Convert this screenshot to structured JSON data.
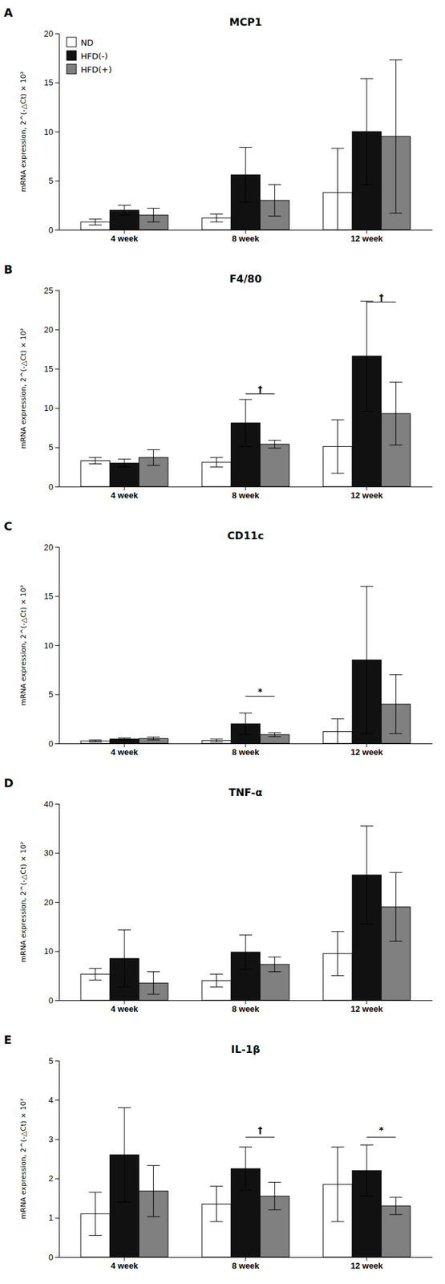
{
  "chart_data": [
    {
      "type": "bar",
      "panel_label": "A",
      "title": "MCP1",
      "y_label": "mRNA expression, 2^(-△Ct) × 10²",
      "categories": [
        "4 week",
        "8 week",
        "12 week"
      ],
      "series": [
        {
          "name": "ND",
          "color": "#ffffff",
          "values": [
            0.8,
            1.2,
            3.8
          ],
          "errors": [
            0.3,
            0.4,
            4.5
          ]
        },
        {
          "name": "HFD(-)",
          "color": "#111111",
          "values": [
            2.0,
            5.6,
            10.0
          ],
          "errors": [
            0.5,
            2.8,
            5.4
          ]
        },
        {
          "name": "HFD(+)",
          "color": "#808080",
          "values": [
            1.5,
            3.0,
            9.5
          ],
          "errors": [
            0.7,
            1.6,
            7.8
          ]
        }
      ],
      "ylim": [
        0,
        20
      ],
      "yticks": [
        0,
        5,
        10,
        15,
        20
      ],
      "grid": false,
      "legend": "upper left",
      "annotations": []
    },
    {
      "type": "bar",
      "panel_label": "B",
      "title": "F4/80",
      "y_label": "mRNA expression, 2^(-△Ct) × 10²",
      "categories": [
        "4 week",
        "8 week",
        "12 week"
      ],
      "series": [
        {
          "name": "ND",
          "color": "#ffffff",
          "values": [
            3.3,
            3.1,
            5.1
          ],
          "errors": [
            0.4,
            0.6,
            3.4
          ]
        },
        {
          "name": "HFD(-)",
          "color": "#111111",
          "values": [
            3.0,
            8.1,
            16.6
          ],
          "errors": [
            0.5,
            3.0,
            7.0
          ]
        },
        {
          "name": "HFD(+)",
          "color": "#808080",
          "values": [
            3.7,
            5.4,
            9.3
          ],
          "errors": [
            1.0,
            0.5,
            4.0
          ]
        }
      ],
      "ylim": [
        0,
        25
      ],
      "yticks": [
        0,
        5,
        10,
        15,
        20,
        25
      ],
      "grid": false,
      "annotations": [
        {
          "text": "†",
          "category": "8 week",
          "series": [
            "HFD(-)",
            "HFD(+)"
          ],
          "y": 11.8,
          "y_text": 12.0
        },
        {
          "text": "†",
          "category": "12 week",
          "series": [
            "HFD(-)",
            "HFD(+)"
          ],
          "y": 23.5,
          "y_text": 23.7
        }
      ]
    },
    {
      "type": "bar",
      "panel_label": "C",
      "title": "CD11c",
      "y_label": "mRNA expression, 2^(-△Ct) × 10²",
      "categories": [
        "4 week",
        "8 week",
        "12 week"
      ],
      "series": [
        {
          "name": "ND",
          "color": "#ffffff",
          "values": [
            0.25,
            0.3,
            1.2
          ],
          "errors": [
            0.1,
            0.15,
            1.3
          ]
        },
        {
          "name": "HFD(-)",
          "color": "#111111",
          "values": [
            0.45,
            2.0,
            8.5
          ],
          "errors": [
            0.1,
            1.1,
            7.5
          ]
        },
        {
          "name": "HFD(+)",
          "color": "#808080",
          "values": [
            0.5,
            0.9,
            4.0
          ],
          "errors": [
            0.15,
            0.2,
            3.0
          ]
        }
      ],
      "ylim": [
        0,
        20
      ],
      "yticks": [
        0,
        5,
        10,
        15,
        20
      ],
      "grid": false,
      "annotations": [
        {
          "text": "*",
          "category": "8 week",
          "series": [
            "HFD(-)",
            "HFD(+)"
          ],
          "y": 4.8,
          "y_text": 5.0
        }
      ]
    },
    {
      "type": "bar",
      "panel_label": "D",
      "title": "TNF-α",
      "y_label": "mRNA expression, 2^(-△Ct) × 10²",
      "categories": [
        "4 week",
        "8 week",
        "12 week"
      ],
      "series": [
        {
          "name": "ND",
          "color": "#ffffff",
          "values": [
            5.3,
            4.0,
            9.5
          ],
          "errors": [
            1.2,
            1.3,
            4.5
          ]
        },
        {
          "name": "HFD(-)",
          "color": "#111111",
          "values": [
            8.5,
            9.8,
            25.5
          ],
          "errors": [
            5.8,
            3.5,
            10.0
          ]
        },
        {
          "name": "HFD(+)",
          "color": "#808080",
          "values": [
            3.5,
            7.3,
            19.0
          ],
          "errors": [
            2.3,
            1.5,
            7.0
          ]
        }
      ],
      "ylim": [
        0,
        40
      ],
      "yticks": [
        0,
        10,
        20,
        30,
        40
      ],
      "grid": false,
      "annotations": []
    },
    {
      "type": "bar",
      "panel_label": "E",
      "title": "IL-1β",
      "y_label": "mRNA expression, 2^(-△Ct) × 10³",
      "categories": [
        "4 week",
        "8 week",
        "12 week"
      ],
      "series": [
        {
          "name": "ND",
          "color": "#ffffff",
          "values": [
            1.1,
            1.35,
            1.85
          ],
          "errors": [
            0.55,
            0.45,
            0.95
          ]
        },
        {
          "name": "HFD(-)",
          "color": "#111111",
          "values": [
            2.6,
            2.25,
            2.2
          ],
          "errors": [
            1.2,
            0.55,
            0.65
          ]
        },
        {
          "name": "HFD(+)",
          "color": "#808080",
          "values": [
            1.68,
            1.55,
            1.3
          ],
          "errors": [
            0.65,
            0.35,
            0.22
          ]
        }
      ],
      "ylim": [
        0,
        5
      ],
      "yticks": [
        0,
        1,
        2,
        3,
        4,
        5
      ],
      "grid": false,
      "annotations": [
        {
          "text": "†",
          "category": "8 week",
          "series": [
            "HFD(-)",
            "HFD(+)"
          ],
          "y": 3.05,
          "y_text": 3.15
        },
        {
          "text": "*",
          "category": "12 week",
          "series": [
            "HFD(-)",
            "HFD(+)"
          ],
          "y": 3.05,
          "y_text": 3.15
        }
      ]
    }
  ]
}
